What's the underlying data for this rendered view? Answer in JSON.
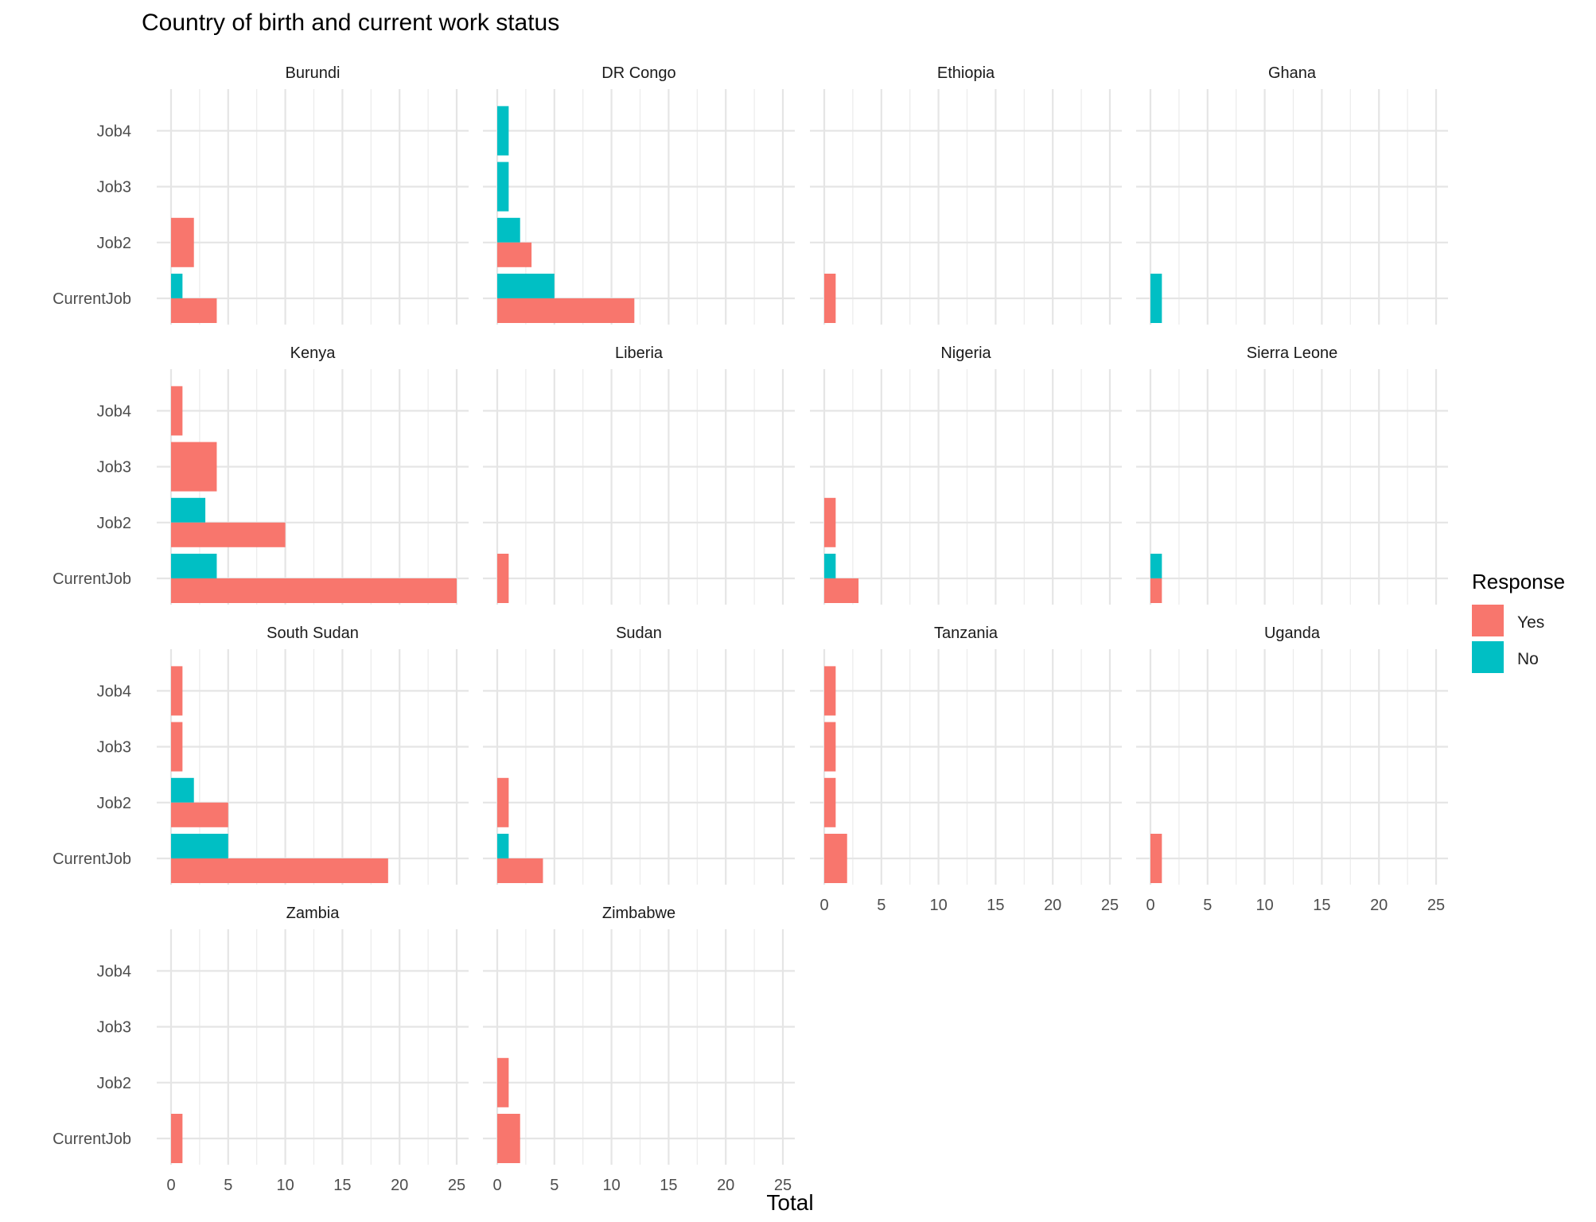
{
  "chart_data": {
    "type": "bar",
    "orientation": "horizontal",
    "title": "Country of birth and current work status",
    "xlabel": "Total",
    "ylabel": "",
    "xlim": [
      0,
      25
    ],
    "x_ticks": [
      0,
      5,
      10,
      15,
      20,
      25
    ],
    "categories": [
      "CurrentJob",
      "Job2",
      "Job3",
      "Job4"
    ],
    "grid": true,
    "legend": {
      "title": "Response",
      "position": "right",
      "entries": [
        {
          "name": "Yes",
          "color": "#F8766D"
        },
        {
          "name": "No",
          "color": "#00BFC4"
        }
      ]
    },
    "facets": [
      {
        "name": "Burundi",
        "yes": [
          4,
          2,
          0,
          0
        ],
        "no": [
          1,
          0,
          0,
          0
        ]
      },
      {
        "name": "DR Congo",
        "yes": [
          12,
          3,
          0,
          0
        ],
        "no": [
          5,
          2,
          1,
          1
        ]
      },
      {
        "name": "Ethiopia",
        "yes": [
          1,
          0,
          0,
          0
        ],
        "no": [
          0,
          0,
          0,
          0
        ]
      },
      {
        "name": "Ghana",
        "yes": [
          0,
          0,
          0,
          0
        ],
        "no": [
          1,
          0,
          0,
          0
        ]
      },
      {
        "name": "Kenya",
        "yes": [
          25,
          10,
          4,
          1
        ],
        "no": [
          4,
          3,
          0,
          0
        ]
      },
      {
        "name": "Liberia",
        "yes": [
          1,
          0,
          0,
          0
        ],
        "no": [
          0,
          0,
          0,
          0
        ]
      },
      {
        "name": "Nigeria",
        "yes": [
          3,
          1,
          0,
          0
        ],
        "no": [
          1,
          0,
          0,
          0
        ]
      },
      {
        "name": "Sierra Leone",
        "yes": [
          1,
          0,
          0,
          0
        ],
        "no": [
          1,
          0,
          0,
          0
        ]
      },
      {
        "name": "South Sudan",
        "yes": [
          19,
          5,
          1,
          1
        ],
        "no": [
          5,
          2,
          0,
          0
        ]
      },
      {
        "name": "Sudan",
        "yes": [
          4,
          1,
          0,
          0
        ],
        "no": [
          1,
          0,
          0,
          0
        ]
      },
      {
        "name": "Tanzania",
        "yes": [
          2,
          1,
          1,
          1
        ],
        "no": [
          0,
          0,
          0,
          0
        ]
      },
      {
        "name": "Uganda",
        "yes": [
          1,
          0,
          0,
          0
        ],
        "no": [
          0,
          0,
          0,
          0
        ]
      },
      {
        "name": "Zambia",
        "yes": [
          1,
          0,
          0,
          0
        ],
        "no": [
          0,
          0,
          0,
          0
        ]
      },
      {
        "name": "Zimbabwe",
        "yes": [
          2,
          1,
          0,
          0
        ],
        "no": [
          0,
          0,
          0,
          0
        ]
      }
    ]
  }
}
